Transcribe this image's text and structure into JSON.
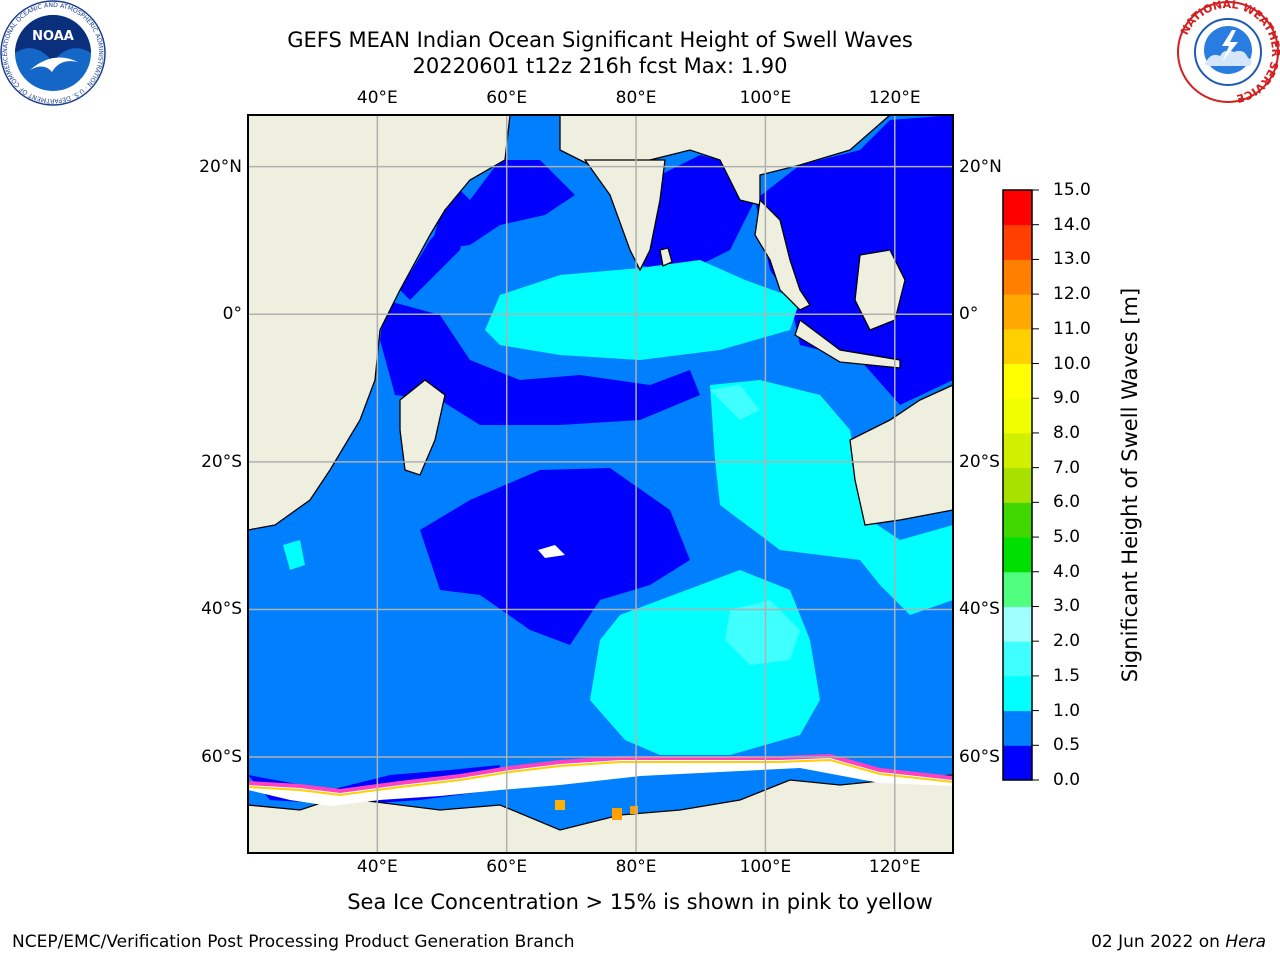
{
  "header": {
    "title_line1": "GEFS MEAN Indian Ocean Significant Height of Swell Waves",
    "title_line2": "20220601 t12z 216h fcst   Max: 1.90"
  },
  "map": {
    "lon_range": [
      20,
      129
    ],
    "lat_range": [
      -73,
      27
    ],
    "x_tick_labels": [
      "40°E",
      "60°E",
      "80°E",
      "100°E",
      "120°E"
    ],
    "x_tick_values": [
      40,
      60,
      80,
      100,
      120
    ],
    "y_tick_labels": [
      "20°N",
      "0°",
      "20°S",
      "40°S",
      "60°S"
    ],
    "y_tick_values": [
      20,
      0,
      -20,
      -40,
      -60
    ],
    "land_color": "#efefdf",
    "ice_color": "#ffffff"
  },
  "colorbar": {
    "title": "Significant Height of Swell Waves [m]",
    "levels": [
      "0.0",
      "0.5",
      "1.0",
      "1.5",
      "2.0",
      "3.0",
      "4.0",
      "5.0",
      "6.0",
      "7.0",
      "8.0",
      "9.0",
      "10.0",
      "11.0",
      "12.0",
      "13.0",
      "14.0",
      "15.0"
    ],
    "colors": [
      "#0000ff",
      "#0080ff",
      "#00ffff",
      "#40ffff",
      "#a0ffff",
      "#50ff80",
      "#00e000",
      "#40d800",
      "#a8e000",
      "#d0f000",
      "#f0ff00",
      "#ffff00",
      "#ffd000",
      "#ffa800",
      "#ff8000",
      "#ff4000",
      "#ff0000"
    ]
  },
  "subtitle": "Sea Ice Concentration > 15% is shown in pink to yellow",
  "footer": {
    "left": "NCEP/EMC/Verification Post Processing Product Generation Branch",
    "right_date": "02 Jun 2022 on ",
    "right_host": "Hera"
  },
  "logos": {
    "left": "NOAA",
    "left_ring_text": "NATIONAL OCEANIC AND ATMOSPHERIC ADMINISTRATION · U.S. DEPARTMENT OF COMMERCE",
    "right_ring_text": "NATIONAL WEATHER SERVICE"
  }
}
